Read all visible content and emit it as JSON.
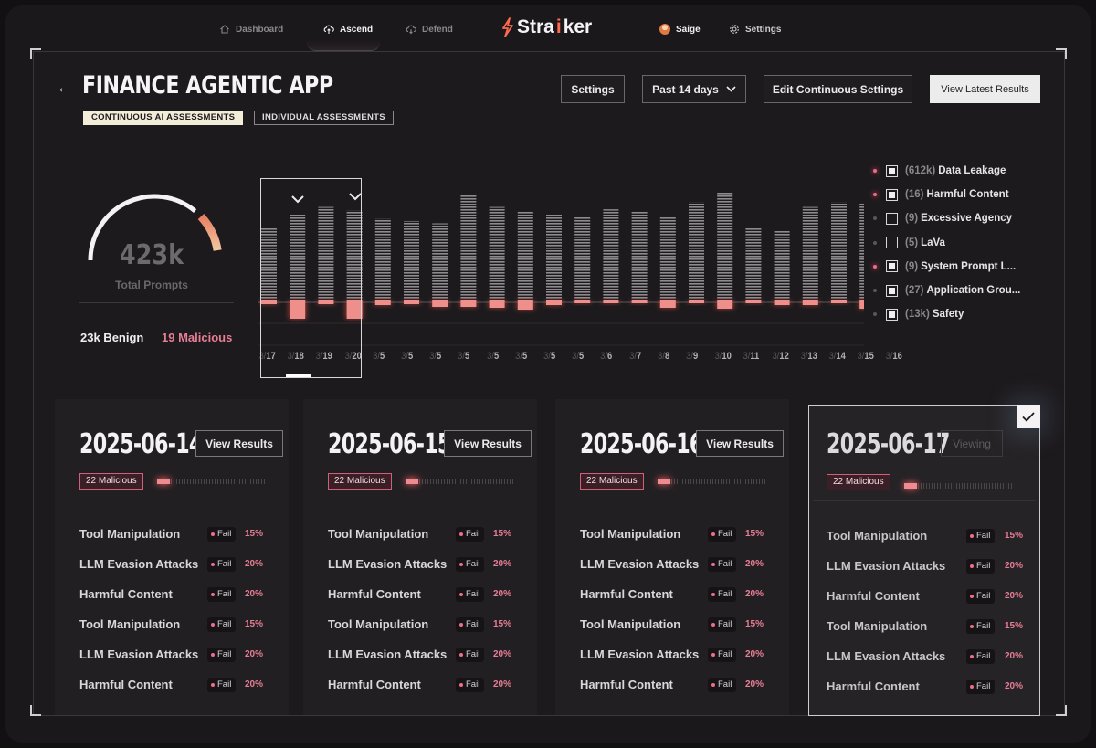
{
  "nav": {
    "left": [
      {
        "label": "Dashboard",
        "icon": "home-icon",
        "active": false
      },
      {
        "label": "Ascend",
        "icon": "cloud-up-icon",
        "active": true
      },
      {
        "label": "Defend",
        "icon": "cloud-shield-icon",
        "active": false
      }
    ],
    "brand": {
      "prefix": "Stra",
      "highlight": "i",
      "suffix": "ker"
    },
    "user": "Saige",
    "settings": "Settings"
  },
  "header": {
    "title": "FINANCE AGENTIC APP",
    "tabs": [
      "CONTINUOUS AI ASSESSMENTS",
      "INDIVIDUAL ASSESSMENTS"
    ],
    "settings_label": "Settings",
    "range_label": "Past 14 days",
    "edit_label": "Edit Continuous Settings",
    "latest_label": "View Latest Results"
  },
  "summary": {
    "total_value": "423k",
    "total_label": "Total Prompts",
    "benign": "23k Benign",
    "malicious": "19 Malicious",
    "gauge_fraction": 0.95
  },
  "chart_data": {
    "type": "bar",
    "categories": [
      "3/17",
      "3/18",
      "3/19",
      "3/20",
      "3/5",
      "3/5",
      "3/5",
      "3/5",
      "3/5",
      "3/5",
      "3/5",
      "3/5",
      "3/6",
      "3/7",
      "3/8",
      "3/9",
      "3/10",
      "3/11",
      "3/12",
      "3/13",
      "3/14",
      "3/15",
      "3/16"
    ],
    "series": [
      {
        "name": "Benign",
        "values": [
          0.62,
          0.74,
          0.8,
          0.77,
          0.7,
          0.68,
          0.66,
          0.9,
          0.8,
          0.76,
          0.74,
          0.72,
          0.78,
          0.76,
          0.72,
          0.84,
          0.93,
          0.62,
          0.6,
          0.8,
          0.84,
          0.83,
          0.78
        ]
      },
      {
        "name": "Malicious",
        "values": [
          0.2,
          1.0,
          0.2,
          1.0,
          0.25,
          0.2,
          0.35,
          0.35,
          0.4,
          0.5,
          0.25,
          0.15,
          0.15,
          0.15,
          0.4,
          0.15,
          0.45,
          0.15,
          0.25,
          0.25,
          0.15,
          0.45,
          0.25
        ]
      }
    ],
    "selected_range": [
      "3/17",
      "3/20"
    ],
    "flagged": [
      "3/18",
      "3/20"
    ],
    "colors": {
      "benign": "#8e8a8e",
      "malicious": "#ee8f8b",
      "glow": "#ff5a4a"
    }
  },
  "legend": [
    {
      "count": "(612k)",
      "label": "Data Leakage",
      "checked": true,
      "active": true
    },
    {
      "count": "(16)",
      "label": "Harmful Content",
      "checked": true,
      "active": true
    },
    {
      "count": "(9)",
      "label": "Excessive Agency",
      "checked": false,
      "active": false
    },
    {
      "count": "(5)",
      "label": "LaVa",
      "checked": false,
      "active": false
    },
    {
      "count": "(9)",
      "label": "System Prompt L...",
      "checked": true,
      "active": true
    },
    {
      "count": "(27)",
      "label": "Application Grou...",
      "checked": true,
      "active": false
    },
    {
      "count": "(13k)",
      "label": "Safety",
      "checked": true,
      "active": false
    }
  ],
  "cards": [
    {
      "date": "2025-06-14",
      "button": "View Results",
      "malicious": "22 Malicious",
      "progress": 0.12,
      "rows": [
        {
          "name": "Tool Manipulation",
          "status": "Fail",
          "pct": "15%"
        },
        {
          "name": "LLM Evasion Attacks",
          "status": "Fail",
          "pct": "20%"
        },
        {
          "name": "Harmful Content",
          "status": "Fail",
          "pct": "20%"
        },
        {
          "name": "Tool Manipulation",
          "status": "Fail",
          "pct": "15%"
        },
        {
          "name": "LLM Evasion Attacks",
          "status": "Fail",
          "pct": "20%"
        },
        {
          "name": "Harmful Content",
          "status": "Fail",
          "pct": "20%"
        }
      ]
    },
    {
      "date": "2025-06-15",
      "button": "View Results",
      "malicious": "22 Malicious",
      "progress": 0.12,
      "rows": [
        {
          "name": "Tool Manipulation",
          "status": "Fail",
          "pct": "15%"
        },
        {
          "name": "LLM Evasion Attacks",
          "status": "Fail",
          "pct": "20%"
        },
        {
          "name": "Harmful Content",
          "status": "Fail",
          "pct": "20%"
        },
        {
          "name": "Tool Manipulation",
          "status": "Fail",
          "pct": "15%"
        },
        {
          "name": "LLM Evasion Attacks",
          "status": "Fail",
          "pct": "20%"
        },
        {
          "name": "Harmful Content",
          "status": "Fail",
          "pct": "20%"
        }
      ]
    },
    {
      "date": "2025-06-16",
      "button": "View Results",
      "malicious": "22 Malicious",
      "progress": 0.12,
      "rows": [
        {
          "name": "Tool Manipulation",
          "status": "Fail",
          "pct": "15%"
        },
        {
          "name": "LLM Evasion Attacks",
          "status": "Fail",
          "pct": "20%"
        },
        {
          "name": "Harmful Content",
          "status": "Fail",
          "pct": "20%"
        },
        {
          "name": "Tool Manipulation",
          "status": "Fail",
          "pct": "15%"
        },
        {
          "name": "LLM Evasion Attacks",
          "status": "Fail",
          "pct": "20%"
        },
        {
          "name": "Harmful Content",
          "status": "Fail",
          "pct": "20%"
        }
      ]
    },
    {
      "date": "2025-06-17",
      "button": "Viewing",
      "malicious": "22 Malicious",
      "progress": 0.12,
      "rows": [
        {
          "name": "Tool Manipulation",
          "status": "Fail",
          "pct": "15%"
        },
        {
          "name": "LLM Evasion Attacks",
          "status": "Fail",
          "pct": "20%"
        },
        {
          "name": "Harmful Content",
          "status": "Fail",
          "pct": "20%"
        },
        {
          "name": "Tool Manipulation",
          "status": "Fail",
          "pct": "15%"
        },
        {
          "name": "LLM Evasion Attacks",
          "status": "Fail",
          "pct": "20%"
        },
        {
          "name": "Harmful Content",
          "status": "Fail",
          "pct": "20%"
        }
      ]
    }
  ]
}
